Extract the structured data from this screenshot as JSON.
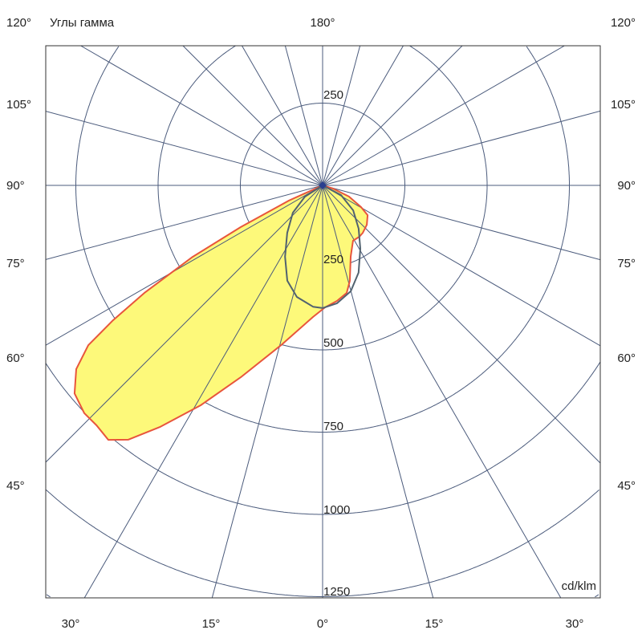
{
  "chart_data": {
    "type": "polar",
    "title": "Углы гамма",
    "unit_label": "cd/klm",
    "radial_ticks": [
      250,
      500,
      750,
      1000,
      1250
    ],
    "radial_tick_labels": [
      "250",
      "250",
      "500",
      "750",
      "1000",
      "1250"
    ],
    "angle_step_deg": 15,
    "top_label": "180°",
    "corner_labels": [
      "120°",
      "120°"
    ],
    "side_labels": [
      "105°",
      "90°",
      "75°",
      "60°",
      "45°"
    ],
    "bottom_labels": [
      "30°",
      "15°",
      "0°",
      "15°",
      "30°"
    ],
    "grid": true,
    "colors": {
      "grid": "#4b5b7c",
      "fill": "#fdf97a",
      "outline": "#e8553c",
      "second_curve": "#51626f",
      "center": "#2a3f8f"
    },
    "series": [
      {
        "style": "filled",
        "angles_deg": [
          90,
          65.7,
          63,
          61.2,
          58.9,
          57.2,
          55.7,
          53.3,
          50,
          46.3,
          43.3,
          40.1,
          37.4,
          33.9,
          29,
          23.1,
          14.6,
          4.2,
          -1.1,
          -7.1,
          -12.6,
          -15.9,
          -21.5,
          -28.8,
          -35.7,
          -40.3,
          -48.3,
          -56.5,
          -60.6,
          -67,
          -73
        ],
        "values": [
          0,
          112,
          279,
          451,
          633,
          760,
          862,
          934,
          984,
          1002,
          1002,
          1011,
          973,
          884,
          764,
          634,
          502,
          401,
          371,
          354,
          335,
          302,
          233,
          192,
          192,
          189,
          180,
          164,
          134,
          87,
          33
        ]
      },
      {
        "style": "line",
        "angles_deg": [
          90,
          57.5,
          47.4,
          36.7,
          27.8,
          20.3,
          13,
          4.5,
          0,
          -7,
          -14.9,
          -22.4,
          -30.8,
          -39.8,
          -50.8,
          -62.4
        ],
        "values": [
          0,
          64,
          123,
          180,
          245,
          309,
          348,
          370,
          373,
          361,
          333,
          287,
          224,
          171,
          120,
          63
        ]
      }
    ]
  }
}
